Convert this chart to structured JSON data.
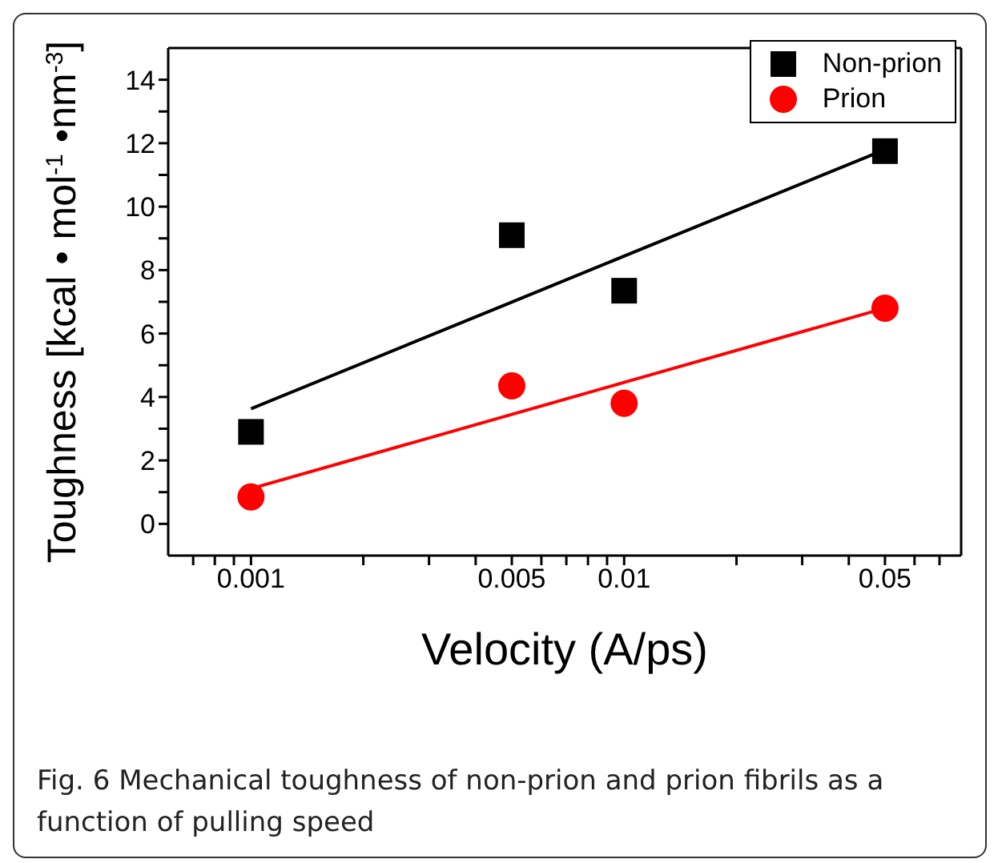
{
  "chart_data": {
    "type": "scatter",
    "xlabel": "Velocity (A/ps)",
    "ylabel": "Toughness [kcal • mol$^{-1}$ •nm$^{-3}$]",
    "log": "x",
    "xlim": [
      0.0006,
      0.08
    ],
    "xticks": [
      {
        "value": 0.0007,
        "label": null
      },
      {
        "value": 0.0008,
        "label": null
      },
      {
        "value": 0.0009,
        "label": null
      },
      0.001,
      {
        "value": 0.002,
        "label": null
      },
      {
        "value": 0.003,
        "label": null
      },
      {
        "value": 0.004,
        "label": null
      },
      0.005,
      {
        "value": 0.006,
        "label": null
      },
      {
        "value": 0.007,
        "label": null
      },
      {
        "value": 0.008,
        "label": null
      },
      {
        "value": 0.009,
        "label": null
      },
      0.01,
      {
        "value": 0.02,
        "label": null
      },
      {
        "value": 0.03,
        "label": null
      },
      {
        "value": 0.04,
        "label": null
      },
      0.05,
      {
        "value": 0.06,
        "label": null
      },
      {
        "value": 0.07,
        "label": null
      }
    ],
    "ylim": [
      -1,
      15
    ],
    "yticks": [
      0,
      {
        "value": 1,
        "label": null
      },
      2,
      {
        "value": 3,
        "label": null
      },
      4,
      {
        "value": 5,
        "label": null
      },
      6,
      {
        "value": 7,
        "label": null
      },
      8,
      {
        "value": 9,
        "label": null
      },
      10,
      {
        "value": 11,
        "label": null
      },
      12,
      {
        "value": 13,
        "label": null
      },
      14
    ],
    "x": [
      0.001,
      0.005,
      0.01,
      0.05
    ],
    "series": [
      {
        "name": "Non-prion",
        "color": "#000000",
        "marker": "square",
        "values": [
          2.9,
          9.1,
          7.35,
          11.75
        ]
      },
      {
        "name": "Prion",
        "color": "#ff0000",
        "marker": "circle",
        "values": [
          0.85,
          4.35,
          3.8,
          6.8
        ]
      },
      {
        "type": "line",
        "color": "#000000",
        "marker": "none",
        "values": [
          3.63,
          6.99,
          8.44,
          11.8
        ]
      },
      {
        "type": "line",
        "color": "#ff0000",
        "marker": "none",
        "values": [
          1.11,
          3.45,
          4.46,
          6.8
        ]
      }
    ],
    "legend": "top right",
    "grid": false,
    "annotations": [
      "Fig. 6 Mechanical toughness of non-prion and prion fibrils as a function of pulling speed"
    ]
  }
}
